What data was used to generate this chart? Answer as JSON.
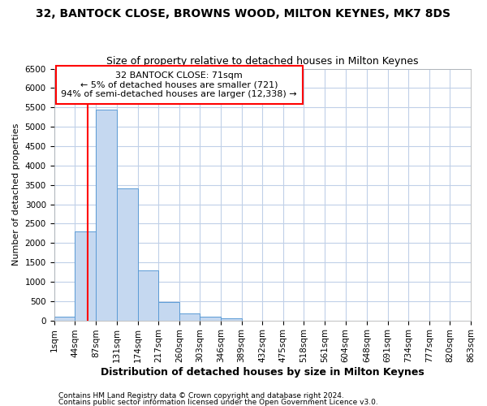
{
  "title1": "32, BANTOCK CLOSE, BROWNS WOOD, MILTON KEYNES, MK7 8DS",
  "title2": "Size of property relative to detached houses in Milton Keynes",
  "xlabel": "Distribution of detached houses by size in Milton Keynes",
  "ylabel": "Number of detached properties",
  "footer1": "Contains HM Land Registry data © Crown copyright and database right 2024.",
  "footer2": "Contains public sector information licensed under the Open Government Licence v3.0.",
  "annotation_title": "32 BANTOCK CLOSE: 71sqm",
  "annotation_line1": "← 5% of detached houses are smaller (721)",
  "annotation_line2": "94% of semi-detached houses are larger (12,338) →",
  "bar_edges": [
    1,
    44,
    87,
    131,
    174,
    217,
    260,
    303,
    346,
    389,
    432,
    475,
    518,
    561,
    604,
    648,
    691,
    734,
    777,
    820,
    863
  ],
  "bar_heights": [
    100,
    2300,
    5450,
    3400,
    1300,
    480,
    175,
    90,
    50,
    0,
    0,
    0,
    0,
    0,
    0,
    0,
    0,
    0,
    0,
    0
  ],
  "bar_color": "#c5d8f0",
  "bar_edge_color": "#5b9bd5",
  "vline_x": 71,
  "vline_color": "red",
  "ylim": [
    0,
    6500
  ],
  "yticks": [
    0,
    500,
    1000,
    1500,
    2000,
    2500,
    3000,
    3500,
    4000,
    4500,
    5000,
    5500,
    6000,
    6500
  ],
  "grid_color": "#c0d0e8",
  "background_color": "#ffffff",
  "title1_fontsize": 10,
  "title2_fontsize": 9,
  "xlabel_fontsize": 9,
  "ylabel_fontsize": 8,
  "tick_fontsize": 7.5,
  "annotation_fontsize": 8,
  "footer_fontsize": 6.5
}
